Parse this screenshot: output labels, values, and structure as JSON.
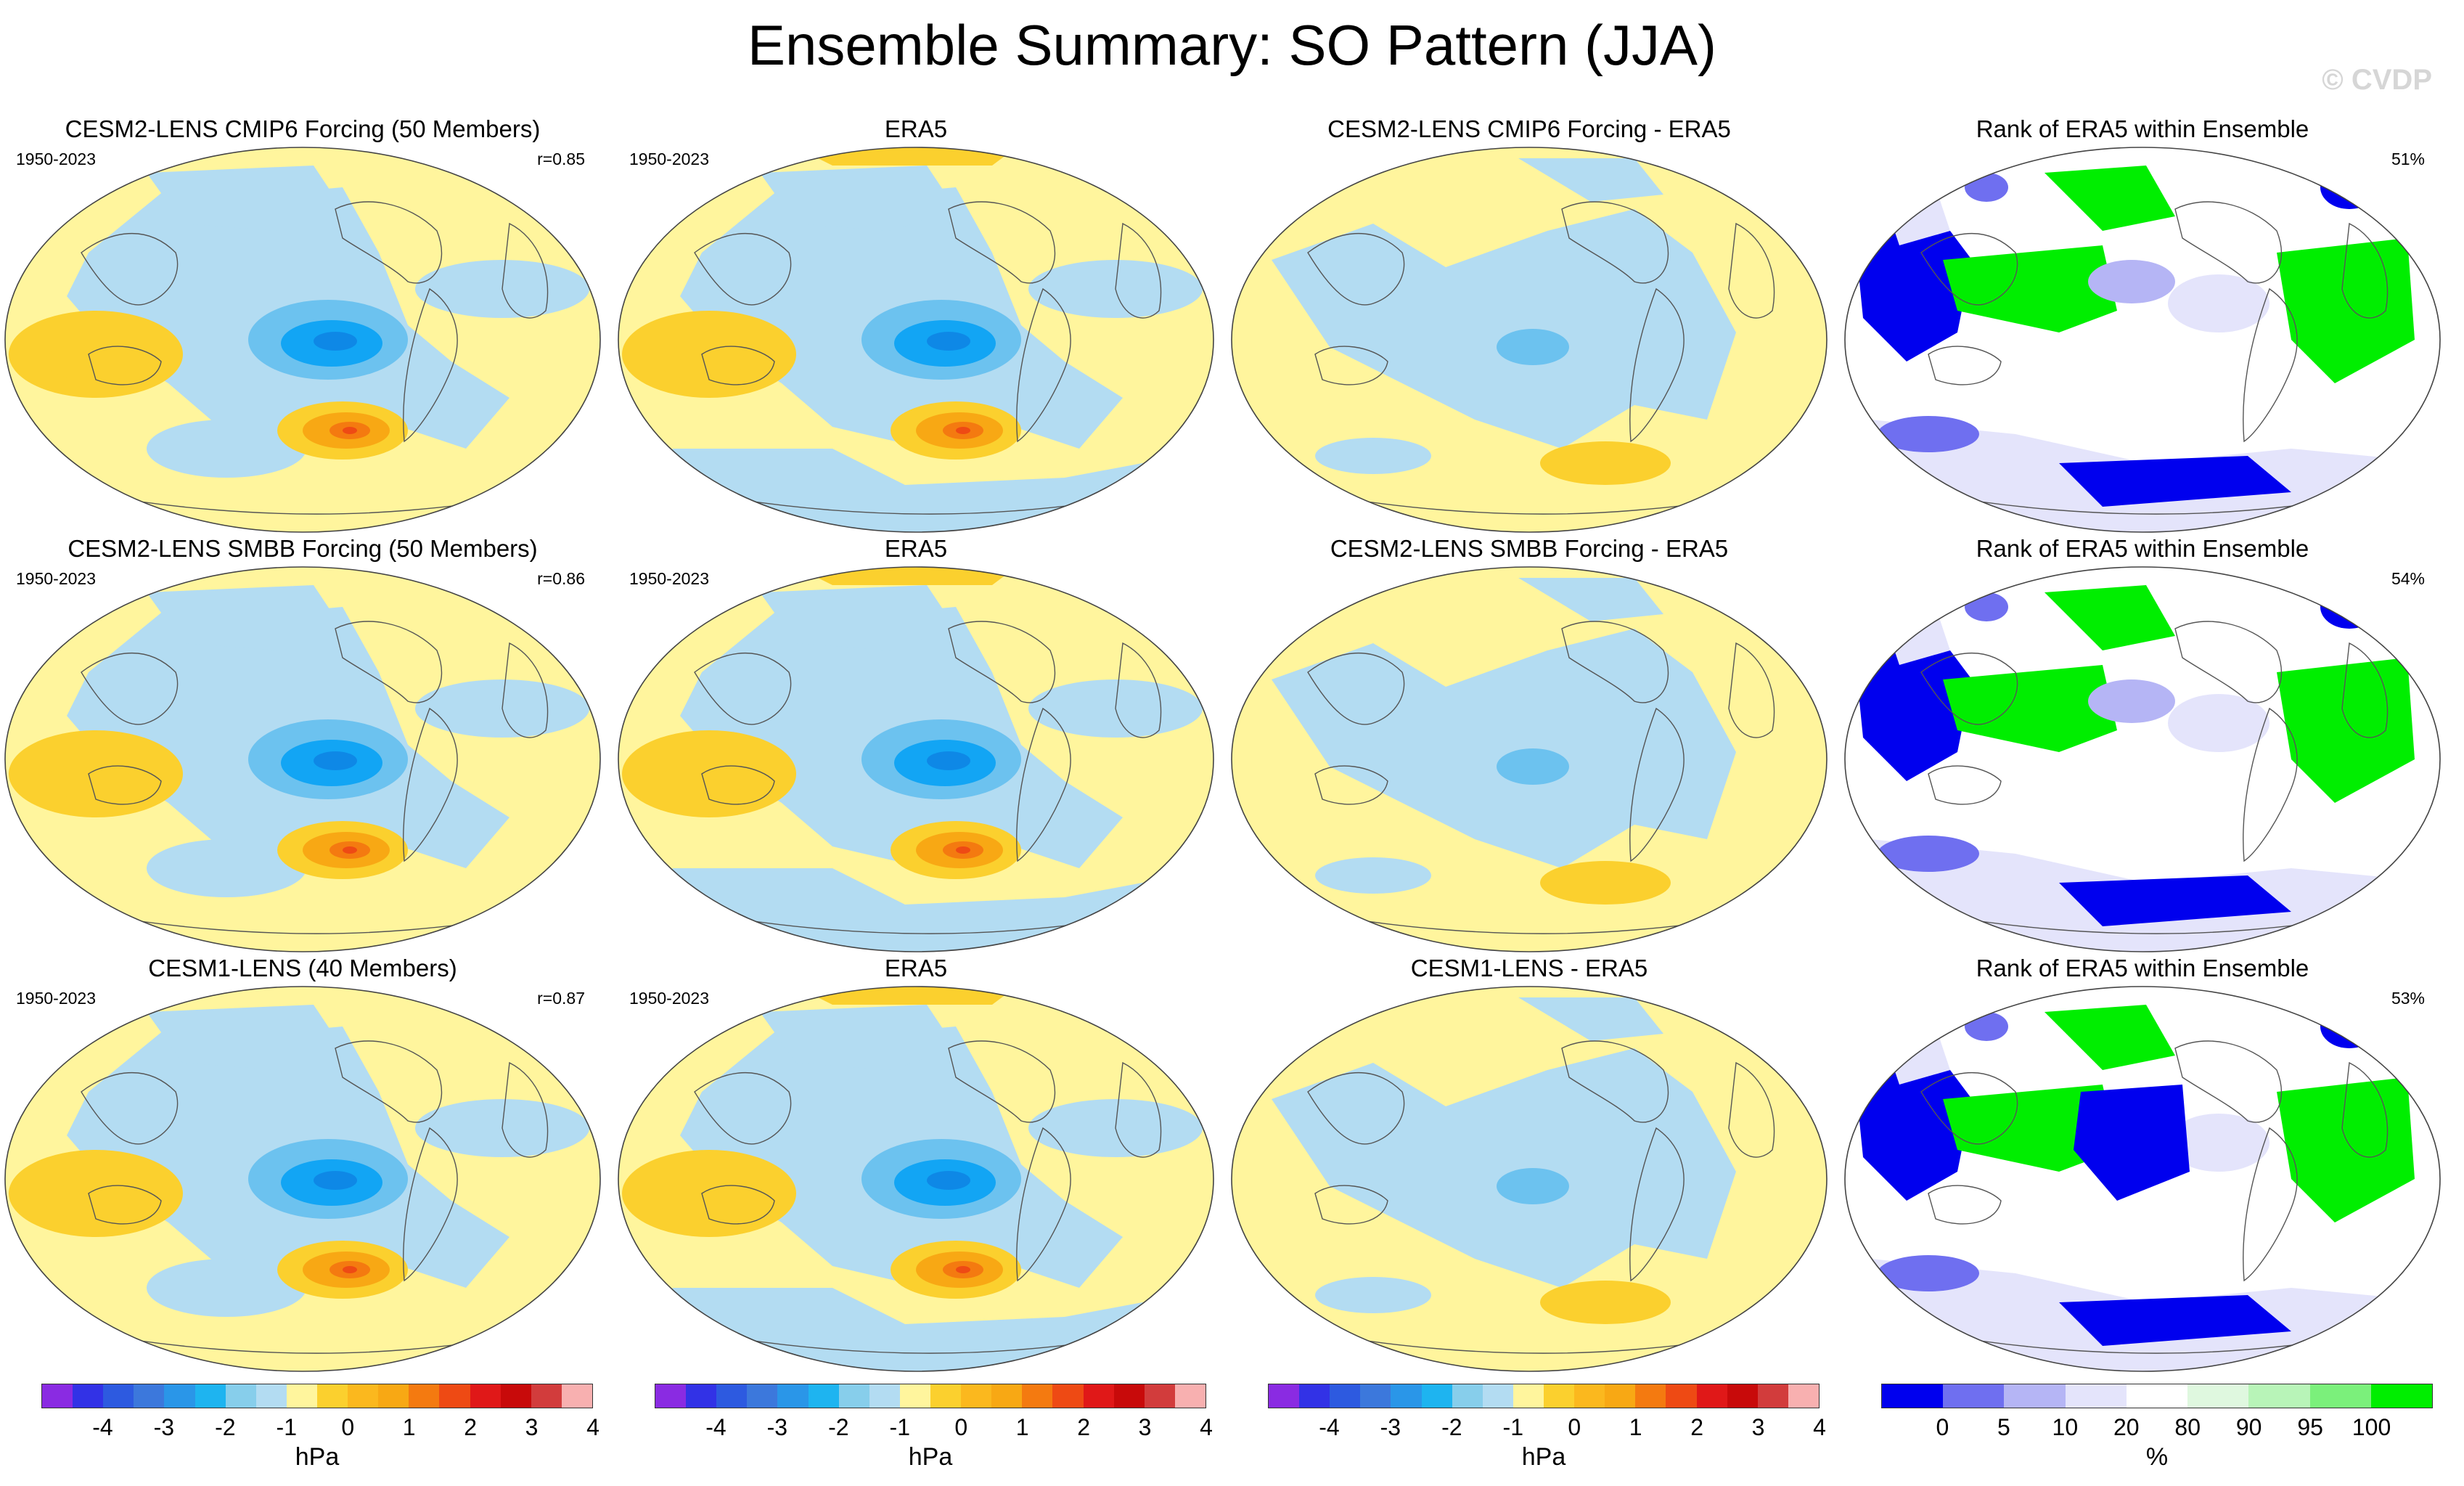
{
  "title": "Ensemble Summary: SO Pattern (JJA)",
  "watermark": "© CVDP",
  "colors": {
    "yellow": "#fff59d",
    "lightblue": "#b3dcf2",
    "midblue": "#6cc2ef",
    "blue": "#12a5f4",
    "darkblue": "#0e88e6",
    "gold": "#fbd02e",
    "orange": "#f8a814",
    "darkorange": "#f47a10",
    "red": "#ee4a14",
    "rank_blue": "#0000ee",
    "rank_midblue": "#6f6ff0",
    "rank_lightblue": "#b5b5f5",
    "rank_paleblue": "#e4e4fb",
    "rank_white": "#ffffff",
    "rank_palegreen": "#dff8df",
    "rank_lightgreen": "#b8f4b8",
    "rank_midgreen": "#7bf07b",
    "rank_green": "#00ee00"
  },
  "rows": [
    {
      "model": {
        "title": "CESM2-LENS CMIP6 Forcing (50 Members)",
        "period": "1950-2023",
        "corr": "r=0.85"
      },
      "obs": {
        "title": "ERA5",
        "period": "1950-2023"
      },
      "diff": {
        "title": "CESM2-LENS CMIP6 Forcing - ERA5"
      },
      "rank": {
        "title": "Rank of ERA5 within Ensemble",
        "pct": "51%"
      }
    },
    {
      "model": {
        "title": "CESM2-LENS SMBB Forcing (50 Members)",
        "period": "1950-2023",
        "corr": "r=0.86"
      },
      "obs": {
        "title": "ERA5",
        "period": "1950-2023"
      },
      "diff": {
        "title": "CESM2-LENS SMBB Forcing - ERA5"
      },
      "rank": {
        "title": "Rank of ERA5 within Ensemble",
        "pct": "54%"
      }
    },
    {
      "model": {
        "title": "CESM1-LENS (40 Members)",
        "period": "1950-2023",
        "corr": "r=0.87"
      },
      "obs": {
        "title": "ERA5",
        "period": "1950-2023"
      },
      "diff": {
        "title": "CESM1-LENS - ERA5"
      },
      "rank": {
        "title": "Rank of ERA5 within Ensemble",
        "pct": "53%"
      }
    }
  ],
  "colorbars": {
    "anomaly": {
      "unit": "hPa",
      "ticks": [
        "-4",
        "-3",
        "-2",
        "-1",
        "0",
        "1",
        "2",
        "3",
        "4"
      ],
      "colors": [
        "#8a2be2",
        "#3232e6",
        "#2d5ae0",
        "#3c78dc",
        "#2a96e8",
        "#1eb4f0",
        "#87ceeb",
        "#b3dcf2",
        "#fff59d",
        "#fbd02e",
        "#fbb81e",
        "#f8a814",
        "#f47a10",
        "#ee4a14",
        "#e01818",
        "#c80a0a",
        "#d23c3c",
        "#f8b0b0"
      ]
    },
    "rank": {
      "unit": "%",
      "ticks": [
        "0",
        "5",
        "10",
        "20",
        "80",
        "90",
        "95",
        "100"
      ],
      "colors": [
        "#0000ee",
        "#6f6ff0",
        "#b5b5f5",
        "#e4e4fb",
        "#ffffff",
        "#dff8df",
        "#b8f4b8",
        "#7bf07b",
        "#00ee00"
      ]
    }
  },
  "chart_data": [
    {
      "type": "heatmap",
      "title": "CESM2-LENS CMIP6 Forcing (50 Members)",
      "period": "1950-2023",
      "pattern_correlation": 0.85,
      "units": "hPa",
      "range": [
        -4,
        4
      ],
      "features": {
        "s_pacific_low_min": -2.5,
        "s_of_s_america_high_max": 2.0,
        "australia_high_max": 0.8
      }
    },
    {
      "type": "heatmap",
      "title": "ERA5",
      "period": "1950-2023",
      "units": "hPa",
      "range": [
        -4,
        4
      ],
      "features": {
        "s_pacific_low_min": -2.5,
        "s_of_s_america_high_max": 2.5,
        "australia_high_max": 1.0
      }
    },
    {
      "type": "heatmap",
      "title": "CESM2-LENS CMIP6 Forcing - ERA5",
      "units": "hPa",
      "range": [
        -4,
        4
      ],
      "features": {
        "min": -1.0,
        "max": 1.0
      }
    },
    {
      "type": "heatmap",
      "title": "Rank of ERA5 within Ensemble",
      "units": "%",
      "range": [
        0,
        100
      ],
      "summary_pct": 51
    },
    {
      "type": "heatmap",
      "title": "CESM2-LENS SMBB Forcing (50 Members)",
      "period": "1950-2023",
      "pattern_correlation": 0.86,
      "units": "hPa",
      "range": [
        -4,
        4
      ],
      "features": {
        "s_pacific_low_min": -2.5,
        "s_of_s_america_high_max": 2.5,
        "australia_high_max": 1.0
      }
    },
    {
      "type": "heatmap",
      "title": "ERA5",
      "period": "1950-2023",
      "units": "hPa",
      "range": [
        -4,
        4
      ],
      "features": {
        "s_pacific_low_min": -2.5,
        "s_of_s_america_high_max": 2.5,
        "australia_high_max": 1.0
      }
    },
    {
      "type": "heatmap",
      "title": "CESM2-LENS SMBB Forcing - ERA5",
      "units": "hPa",
      "range": [
        -4,
        4
      ],
      "features": {
        "min": -1.0,
        "max": 1.0
      }
    },
    {
      "type": "heatmap",
      "title": "Rank of ERA5 within Ensemble",
      "units": "%",
      "range": [
        0,
        100
      ],
      "summary_pct": 54
    },
    {
      "type": "heatmap",
      "title": "CESM1-LENS (40 Members)",
      "period": "1950-2023",
      "pattern_correlation": 0.87,
      "units": "hPa",
      "range": [
        -4,
        4
      ],
      "features": {
        "s_pacific_low_min": -2.5,
        "s_of_s_america_high_max": 2.5,
        "australia_high_max": 1.0
      }
    },
    {
      "type": "heatmap",
      "title": "ERA5",
      "period": "1950-2023",
      "units": "hPa",
      "range": [
        -4,
        4
      ],
      "features": {
        "s_pacific_low_min": -2.5,
        "s_of_s_america_high_max": 2.5,
        "australia_high_max": 1.0
      }
    },
    {
      "type": "heatmap",
      "title": "CESM1-LENS - ERA5",
      "units": "hPa",
      "range": [
        -4,
        4
      ],
      "features": {
        "min": -1.0,
        "max": 1.0
      }
    },
    {
      "type": "heatmap",
      "title": "Rank of ERA5 within Ensemble",
      "units": "%",
      "range": [
        0,
        100
      ],
      "summary_pct": 53
    }
  ]
}
